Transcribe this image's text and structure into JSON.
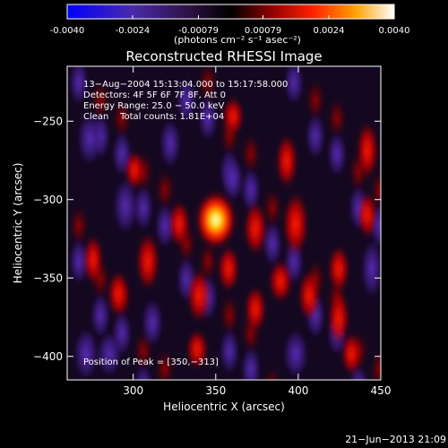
{
  "colorbar": {
    "tick_labels": [
      "-0.0040",
      "-0.0024",
      "-0.00079",
      "0.00079",
      "0.0024",
      "0.0040"
    ],
    "tick_values": [
      -0.004,
      -0.0024,
      -0.00079,
      0.00079,
      0.0024,
      0.004
    ],
    "range": [
      -0.004,
      0.004
    ],
    "unit_label": "(photons cm⁻² s⁻¹ asec⁻²)"
  },
  "chart_data": {
    "type": "heatmap",
    "title": "Reconstructed RHESSI Image",
    "xlabel": "Heliocentric X (arcsec)",
    "ylabel": "Heliocentric Y (arcsec)",
    "xlim": [
      260,
      450
    ],
    "ylim": [
      -415,
      -215
    ],
    "x_ticks": [
      300,
      350,
      400,
      450
    ],
    "x_tick_labels": [
      "300",
      "350",
      "400",
      "450"
    ],
    "y_ticks": [
      -250,
      -300,
      -350,
      -400
    ],
    "y_tick_labels": [
      "−250",
      "−300",
      "−350",
      "−400"
    ],
    "colormap": "red-temperature (blue→purple→black→red→yellow→white)",
    "peak": [
      350,
      -313
    ],
    "annotations": [
      "13−Aug−2004 15:13:04.000 to 15:17:58.000",
      "Detectors: 4F 5F 6F 7F 8F, Att 0",
      "Energy Range: 25.0 − 50.0 keV",
      "Clean    Total counts: 1.81E+04"
    ],
    "peak_label": "Position of Peak = [350,−313]"
  },
  "footer": {
    "timestamp": "21−Jun−2013 21:09"
  }
}
